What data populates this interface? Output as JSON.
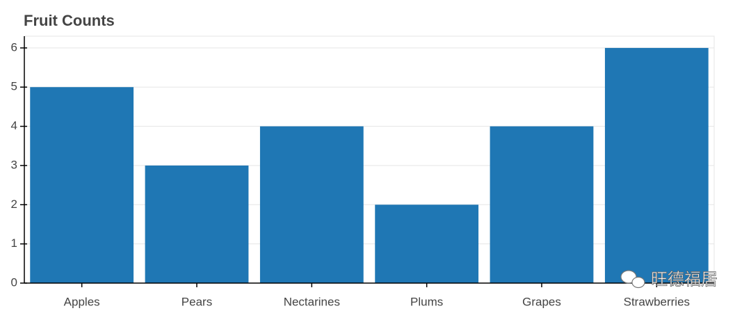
{
  "chart_data": {
    "type": "bar",
    "title": "Fruit Counts",
    "categories": [
      "Apples",
      "Pears",
      "Nectarines",
      "Plums",
      "Grapes",
      "Strawberries"
    ],
    "values": [
      5,
      3,
      4,
      2,
      4,
      6
    ],
    "color": "#1f77b4",
    "ylim": [
      0,
      6.3
    ],
    "yticks": [
      0,
      1,
      2,
      3,
      4,
      5,
      6
    ],
    "grid": true
  },
  "watermark": "旺德福居"
}
